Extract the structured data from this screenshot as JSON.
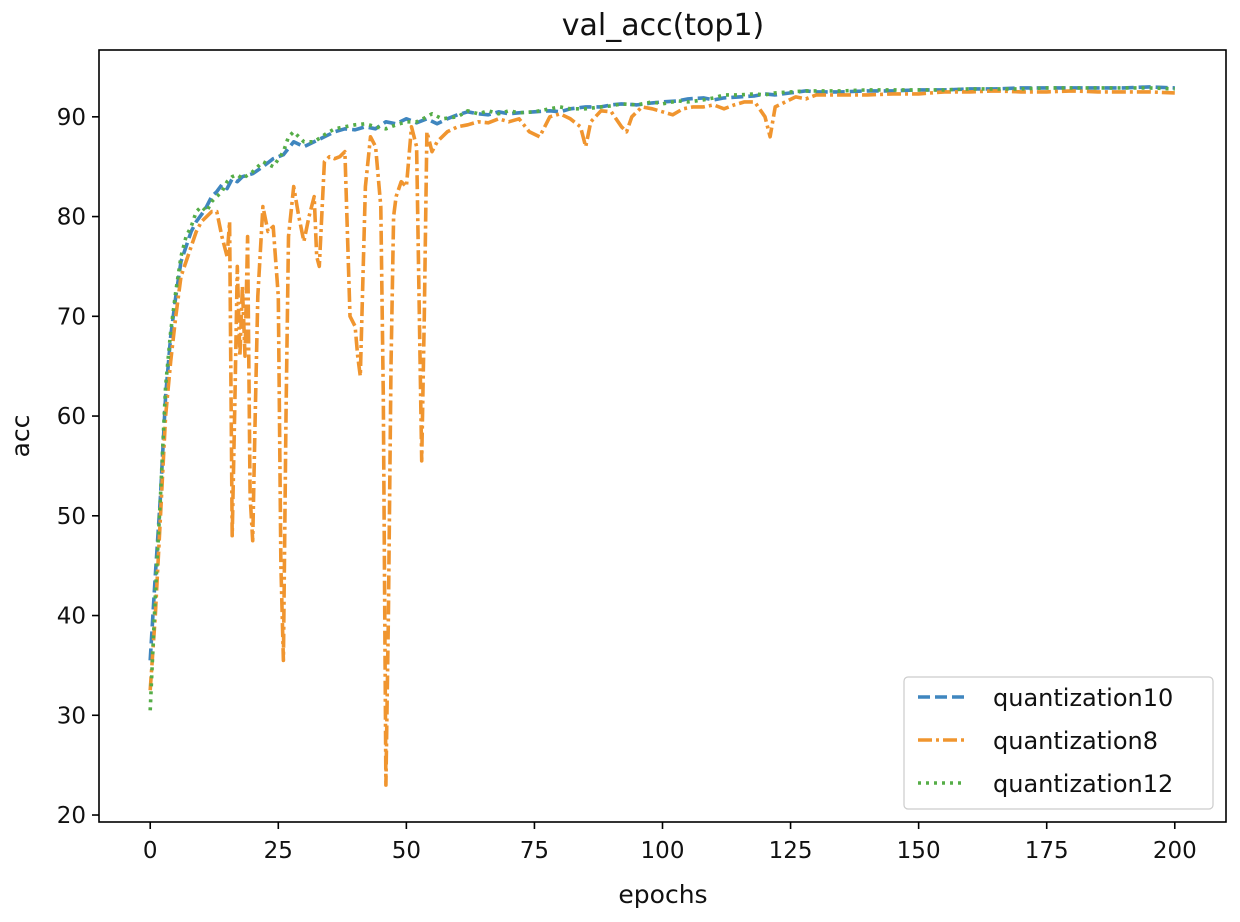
{
  "chart_data": {
    "type": "line",
    "title": "val_acc(top1)",
    "xlabel": "epochs",
    "ylabel": "acc",
    "xlim": [
      -10,
      210
    ],
    "ylim": [
      19.3,
      96.7
    ],
    "xticks": [
      0,
      25,
      50,
      75,
      100,
      125,
      150,
      175,
      200
    ],
    "yticks": [
      20,
      30,
      40,
      50,
      60,
      70,
      80,
      90
    ],
    "grid": false,
    "legend_position": "bottom-right",
    "series": [
      {
        "name": "quantization10",
        "color": "#3f86bf",
        "dash": "dashed",
        "points": [
          [
            0,
            35.5
          ],
          [
            1,
            44
          ],
          [
            2,
            52
          ],
          [
            3,
            62
          ],
          [
            4,
            68
          ],
          [
            5,
            72
          ],
          [
            6,
            75.5
          ],
          [
            7,
            77
          ],
          [
            8,
            78.5
          ],
          [
            9,
            79.5
          ],
          [
            10,
            80.2
          ],
          [
            11,
            81
          ],
          [
            12,
            82
          ],
          [
            13,
            82.5
          ],
          [
            14,
            83.2
          ],
          [
            15,
            82.8
          ],
          [
            16,
            83.8
          ],
          [
            17,
            83.5
          ],
          [
            18,
            84
          ],
          [
            20,
            84.3
          ],
          [
            22,
            85
          ],
          [
            24,
            85.8
          ],
          [
            26,
            86.2
          ],
          [
            28,
            87.5
          ],
          [
            30,
            87
          ],
          [
            32,
            87.5
          ],
          [
            34,
            88
          ],
          [
            36,
            88.5
          ],
          [
            38,
            88.8
          ],
          [
            40,
            88.7
          ],
          [
            42,
            89
          ],
          [
            44,
            88.8
          ],
          [
            46,
            89.5
          ],
          [
            48,
            89.3
          ],
          [
            50,
            89.8
          ],
          [
            52,
            89.4
          ],
          [
            54,
            89.8
          ],
          [
            56,
            89.3
          ],
          [
            58,
            89.8
          ],
          [
            60,
            90.2
          ],
          [
            62,
            90.5
          ],
          [
            64,
            90.3
          ],
          [
            66,
            90.2
          ],
          [
            68,
            90.5
          ],
          [
            70,
            90.3
          ],
          [
            72,
            90.4
          ],
          [
            75,
            90.5
          ],
          [
            78,
            90.6
          ],
          [
            80,
            90.5
          ],
          [
            82,
            90.8
          ],
          [
            85,
            91
          ],
          [
            88,
            91
          ],
          [
            90,
            91.2
          ],
          [
            92,
            91.3
          ],
          [
            95,
            91.2
          ],
          [
            98,
            91.4
          ],
          [
            100,
            91.5
          ],
          [
            103,
            91.6
          ],
          [
            105,
            91.8
          ],
          [
            108,
            91.9
          ],
          [
            110,
            91.7
          ],
          [
            112,
            91.9
          ],
          [
            115,
            92
          ],
          [
            118,
            92.1
          ],
          [
            120,
            92.3
          ],
          [
            122,
            92.2
          ],
          [
            125,
            92.4
          ],
          [
            128,
            92.6
          ],
          [
            130,
            92.5
          ],
          [
            135,
            92.5
          ],
          [
            140,
            92.6
          ],
          [
            145,
            92.6
          ],
          [
            150,
            92.7
          ],
          [
            155,
            92.7
          ],
          [
            160,
            92.8
          ],
          [
            165,
            92.8
          ],
          [
            170,
            92.9
          ],
          [
            175,
            92.9
          ],
          [
            180,
            92.9
          ],
          [
            185,
            92.9
          ],
          [
            190,
            92.9
          ],
          [
            195,
            93
          ],
          [
            200,
            92.9
          ]
        ]
      },
      {
        "name": "quantization8",
        "color": "#f0952f",
        "dash": "dashdot",
        "points": [
          [
            0,
            32.5
          ],
          [
            1,
            40
          ],
          [
            2,
            50
          ],
          [
            3,
            60
          ],
          [
            4,
            65.5
          ],
          [
            5,
            70
          ],
          [
            6,
            74
          ],
          [
            7,
            75.5
          ],
          [
            8,
            77
          ],
          [
            9,
            78.5
          ],
          [
            10,
            79.5
          ],
          [
            11,
            80
          ],
          [
            12,
            80.5
          ],
          [
            13,
            80.5
          ],
          [
            14,
            78
          ],
          [
            15,
            76
          ],
          [
            15.5,
            79.5
          ],
          [
            16,
            48
          ],
          [
            16.5,
            61
          ],
          [
            17,
            75
          ],
          [
            17.5,
            66
          ],
          [
            18,
            73
          ],
          [
            18.5,
            66
          ],
          [
            19,
            78
          ],
          [
            19.5,
            52
          ],
          [
            20,
            47.5
          ],
          [
            20.5,
            60
          ],
          [
            21,
            72
          ],
          [
            22,
            81
          ],
          [
            23,
            78.5
          ],
          [
            24,
            79
          ],
          [
            25,
            72
          ],
          [
            25.5,
            45
          ],
          [
            26,
            35.5
          ],
          [
            26.5,
            60
          ],
          [
            27,
            78
          ],
          [
            28,
            83
          ],
          [
            29,
            80
          ],
          [
            30,
            77.5
          ],
          [
            31,
            80
          ],
          [
            32,
            82
          ],
          [
            32.5,
            76
          ],
          [
            33,
            75
          ],
          [
            34,
            85.5
          ],
          [
            35,
            86
          ],
          [
            36,
            85.8
          ],
          [
            37,
            86
          ],
          [
            38,
            86.5
          ],
          [
            39,
            70
          ],
          [
            40,
            69
          ],
          [
            40.5,
            66
          ],
          [
            41,
            64
          ],
          [
            42,
            83
          ],
          [
            43,
            88
          ],
          [
            44,
            87
          ],
          [
            45,
            81
          ],
          [
            45.5,
            62
          ],
          [
            46,
            23
          ],
          [
            46.5,
            40
          ],
          [
            47,
            65
          ],
          [
            47.5,
            80
          ],
          [
            48,
            82
          ],
          [
            49,
            83.5
          ],
          [
            50,
            83
          ],
          [
            51,
            89
          ],
          [
            52,
            87
          ],
          [
            53,
            55.5
          ],
          [
            53.5,
            70
          ],
          [
            54,
            88.5
          ],
          [
            55,
            86.5
          ],
          [
            56,
            87.5
          ],
          [
            58,
            88.5
          ],
          [
            60,
            89
          ],
          [
            62,
            89.2
          ],
          [
            64,
            89.5
          ],
          [
            66,
            89.4
          ],
          [
            68,
            89.8
          ],
          [
            70,
            89.5
          ],
          [
            72,
            89.8
          ],
          [
            74,
            88.5
          ],
          [
            76,
            88
          ],
          [
            78,
            90
          ],
          [
            80,
            90.3
          ],
          [
            82,
            89.8
          ],
          [
            84,
            89
          ],
          [
            85,
            87
          ],
          [
            86,
            89.5
          ],
          [
            88,
            90.6
          ],
          [
            90,
            90.5
          ],
          [
            92,
            89
          ],
          [
            93,
            88.5
          ],
          [
            94,
            90
          ],
          [
            96,
            91
          ],
          [
            98,
            90.8
          ],
          [
            100,
            90.5
          ],
          [
            102,
            90.2
          ],
          [
            104,
            90.8
          ],
          [
            106,
            91
          ],
          [
            108,
            91
          ],
          [
            110,
            91.2
          ],
          [
            112,
            90.8
          ],
          [
            114,
            91.2
          ],
          [
            116,
            91.5
          ],
          [
            118,
            91.5
          ],
          [
            120,
            90
          ],
          [
            121,
            88
          ],
          [
            122,
            91
          ],
          [
            124,
            91.5
          ],
          [
            126,
            92
          ],
          [
            128,
            91.8
          ],
          [
            130,
            92.2
          ],
          [
            135,
            92.2
          ],
          [
            140,
            92.2
          ],
          [
            145,
            92.3
          ],
          [
            150,
            92.3
          ],
          [
            155,
            92.5
          ],
          [
            160,
            92.5
          ],
          [
            165,
            92.6
          ],
          [
            170,
            92.5
          ],
          [
            175,
            92.5
          ],
          [
            180,
            92.6
          ],
          [
            185,
            92.5
          ],
          [
            190,
            92.5
          ],
          [
            195,
            92.5
          ],
          [
            200,
            92.4
          ]
        ]
      },
      {
        "name": "quantization12",
        "color": "#55ad47",
        "dash": "dotted",
        "points": [
          [
            0,
            30.5
          ],
          [
            1,
            42
          ],
          [
            2,
            52
          ],
          [
            3,
            63
          ],
          [
            4,
            68.5
          ],
          [
            5,
            72.5
          ],
          [
            6,
            76
          ],
          [
            7,
            78
          ],
          [
            8,
            79
          ],
          [
            9,
            80.5
          ],
          [
            10,
            81
          ],
          [
            11,
            80.5
          ],
          [
            12,
            81.5
          ],
          [
            13,
            82
          ],
          [
            14,
            82.5
          ],
          [
            15,
            83.5
          ],
          [
            16,
            84
          ],
          [
            17,
            84.2
          ],
          [
            18,
            83.8
          ],
          [
            20,
            84.5
          ],
          [
            22,
            85.5
          ],
          [
            24,
            85
          ],
          [
            26,
            86.5
          ],
          [
            27,
            88
          ],
          [
            28,
            88.5
          ],
          [
            30,
            87.5
          ],
          [
            32,
            87.5
          ],
          [
            34,
            88.2
          ],
          [
            36,
            88.8
          ],
          [
            38,
            89
          ],
          [
            40,
            89.2
          ],
          [
            42,
            89.3
          ],
          [
            44,
            89
          ],
          [
            46,
            88.8
          ],
          [
            48,
            89.2
          ],
          [
            50,
            89.5
          ],
          [
            52,
            89.5
          ],
          [
            54,
            90
          ],
          [
            55,
            90.3
          ],
          [
            57,
            89.8
          ],
          [
            60,
            90
          ],
          [
            62,
            90.6
          ],
          [
            64,
            90.3
          ],
          [
            66,
            90.6
          ],
          [
            68,
            90.3
          ],
          [
            70,
            90.6
          ],
          [
            72,
            90.4
          ],
          [
            75,
            90.5
          ],
          [
            78,
            90.8
          ],
          [
            80,
            91
          ],
          [
            82,
            90.8
          ],
          [
            85,
            90.8
          ],
          [
            88,
            91
          ],
          [
            90,
            91.1
          ],
          [
            92,
            91.3
          ],
          [
            95,
            91.2
          ],
          [
            98,
            91.5
          ],
          [
            100,
            91.3
          ],
          [
            103,
            91.6
          ],
          [
            105,
            91.5
          ],
          [
            108,
            91.7
          ],
          [
            110,
            91.9
          ],
          [
            112,
            92.2
          ],
          [
            115,
            92.2
          ],
          [
            118,
            92.3
          ],
          [
            120,
            92.2
          ],
          [
            122,
            92.4
          ],
          [
            125,
            92.5
          ],
          [
            128,
            92.6
          ],
          [
            130,
            92.6
          ],
          [
            135,
            92.6
          ],
          [
            140,
            92.7
          ],
          [
            145,
            92.7
          ],
          [
            150,
            92.7
          ],
          [
            155,
            92.7
          ],
          [
            160,
            92.8
          ],
          [
            165,
            92.8
          ],
          [
            170,
            92.8
          ],
          [
            175,
            92.9
          ],
          [
            180,
            92.9
          ],
          [
            185,
            92.9
          ],
          [
            190,
            92.9
          ],
          [
            195,
            92.9
          ],
          [
            200,
            92.8
          ]
        ]
      }
    ]
  }
}
